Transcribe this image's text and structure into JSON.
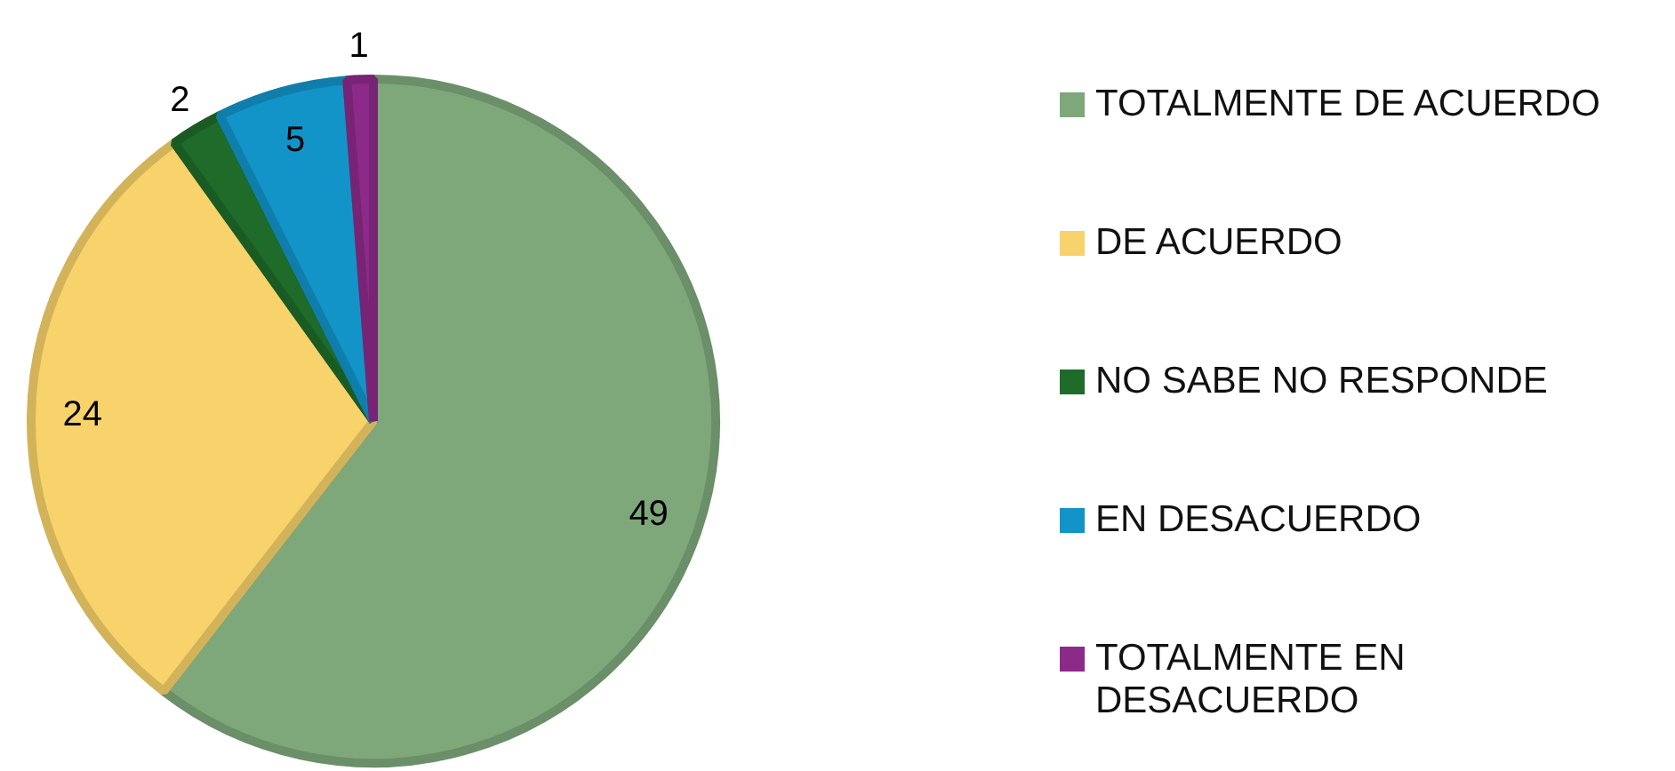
{
  "chart_data": {
    "type": "pie",
    "categories": [
      "TOTALMENTE DE ACUERDO",
      "DE ACUERDO",
      "NO SABE NO RESPONDE",
      "EN DESACUERDO",
      "TOTALMENTE EN DESACUERDO"
    ],
    "values": [
      49,
      24,
      2,
      5,
      1
    ],
    "colors": [
      "#7ea87a",
      "#f8d26a",
      "#1e6b2a",
      "#1294c9",
      "#8c2a8a"
    ],
    "data_labels": true,
    "legend": "right"
  }
}
